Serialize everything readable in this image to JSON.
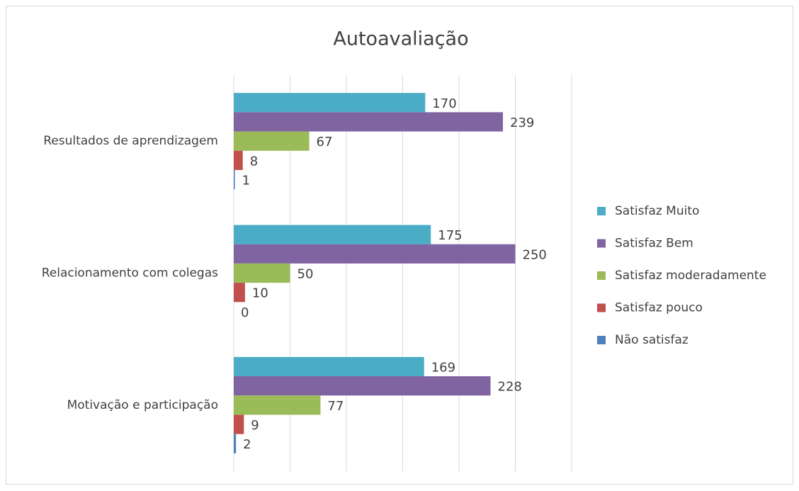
{
  "chart_data": {
    "type": "bar",
    "orientation": "horizontal",
    "title": "Autoavaliação",
    "categories": [
      "Resultados de aprendizagem",
      "Relacionamento com colegas",
      "Motivação e participação"
    ],
    "series": [
      {
        "name": "Satisfaz Muito",
        "color": "#4bacc6",
        "values": [
          170,
          175,
          169
        ]
      },
      {
        "name": "Satisfaz Bem",
        "color": "#8064a2",
        "values": [
          239,
          250,
          228
        ]
      },
      {
        "name": "Satisfaz moderadamente",
        "color": "#9bbb59",
        "values": [
          67,
          50,
          77
        ]
      },
      {
        "name": "Satisfaz pouco",
        "color": "#c0504d",
        "values": [
          8,
          10,
          9
        ]
      },
      {
        "name": "Não satisfaz",
        "color": "#4f81bd",
        "values": [
          1,
          0,
          2
        ]
      }
    ],
    "xlim": [
      0,
      300
    ],
    "xticks": [
      0,
      50,
      100,
      150,
      200,
      250,
      300
    ],
    "grid": true,
    "legend": "right"
  }
}
